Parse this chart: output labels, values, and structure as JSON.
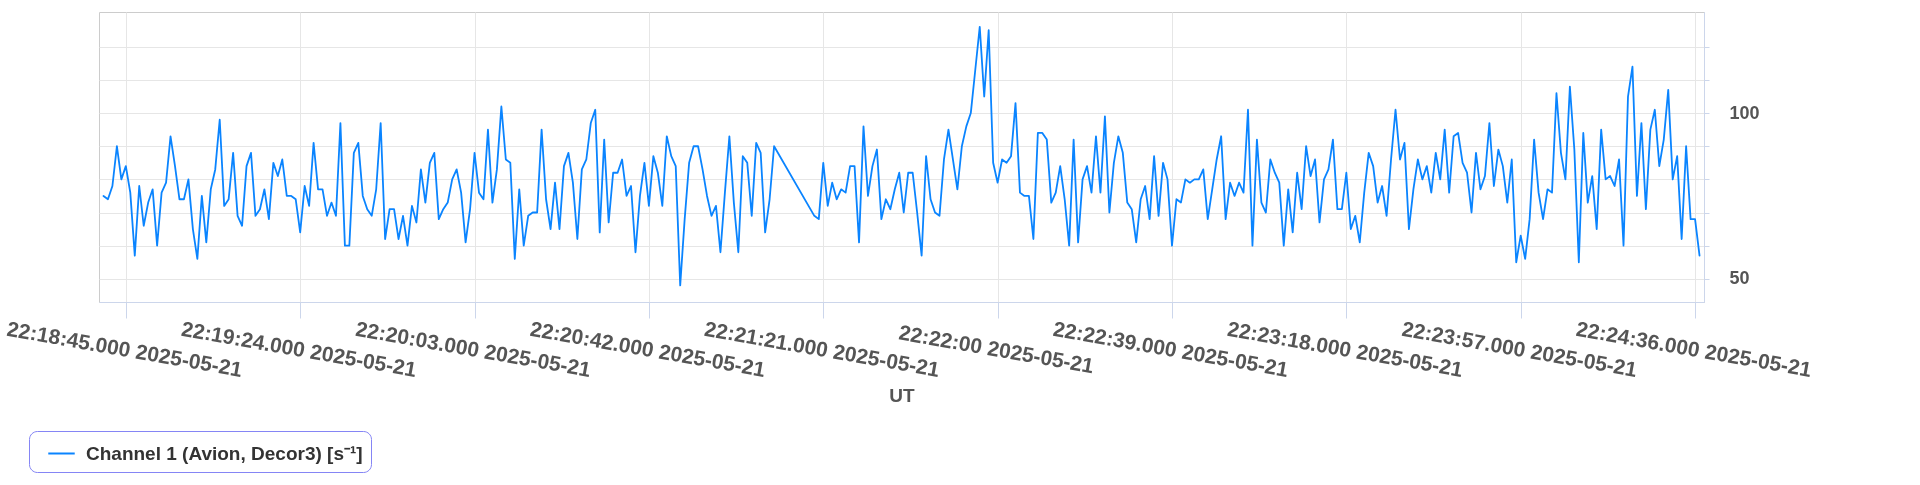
{
  "chart_data": {
    "type": "line",
    "xlabel": "UT",
    "x": [
      "2025-05-21T22:18:40",
      "2025-05-21T22:18:41",
      "2025-05-21T22:18:42",
      "2025-05-21T22:18:43",
      "2025-05-21T22:18:44",
      "2025-05-21T22:18:45",
      "2025-05-21T22:18:46",
      "2025-05-21T22:18:47",
      "2025-05-21T22:18:48",
      "2025-05-21T22:18:49",
      "2025-05-21T22:18:50",
      "2025-05-21T22:18:51",
      "2025-05-21T22:18:52",
      "2025-05-21T22:18:53",
      "2025-05-21T22:18:54",
      "2025-05-21T22:18:55",
      "2025-05-21T22:18:56",
      "2025-05-21T22:18:57",
      "2025-05-21T22:18:58",
      "2025-05-21T22:18:59",
      "2025-05-21T22:19:00",
      "2025-05-21T22:19:01",
      "2025-05-21T22:19:02",
      "2025-05-21T22:19:03",
      "2025-05-21T22:19:04",
      "2025-05-21T22:19:05",
      "2025-05-21T22:19:06",
      "2025-05-21T22:19:07",
      "2025-05-21T22:19:08",
      "2025-05-21T22:19:09",
      "2025-05-21T22:19:10",
      "2025-05-21T22:19:11",
      "2025-05-21T22:19:12",
      "2025-05-21T22:19:13",
      "2025-05-21T22:19:14",
      "2025-05-21T22:19:15",
      "2025-05-21T22:19:16",
      "2025-05-21T22:19:17",
      "2025-05-21T22:19:18",
      "2025-05-21T22:19:19",
      "2025-05-21T22:19:20",
      "2025-05-21T22:19:21",
      "2025-05-21T22:19:22",
      "2025-05-21T22:19:23",
      "2025-05-21T22:19:24",
      "2025-05-21T22:19:25",
      "2025-05-21T22:19:26",
      "2025-05-21T22:19:27",
      "2025-05-21T22:19:28",
      "2025-05-21T22:19:29",
      "2025-05-21T22:19:30",
      "2025-05-21T22:19:31",
      "2025-05-21T22:19:32",
      "2025-05-21T22:19:33",
      "2025-05-21T22:19:34",
      "2025-05-21T22:19:35",
      "2025-05-21T22:19:36",
      "2025-05-21T22:19:37",
      "2025-05-21T22:19:38",
      "2025-05-21T22:19:39",
      "2025-05-21T22:19:40",
      "2025-05-21T22:19:41",
      "2025-05-21T22:19:42",
      "2025-05-21T22:19:43",
      "2025-05-21T22:19:44",
      "2025-05-21T22:19:45",
      "2025-05-21T22:19:46",
      "2025-05-21T22:19:47",
      "2025-05-21T22:19:48",
      "2025-05-21T22:19:49",
      "2025-05-21T22:19:50",
      "2025-05-21T22:19:51",
      "2025-05-21T22:19:52",
      "2025-05-21T22:19:53",
      "2025-05-21T22:19:54",
      "2025-05-21T22:19:55",
      "2025-05-21T22:19:56",
      "2025-05-21T22:19:57",
      "2025-05-21T22:19:58",
      "2025-05-21T22:19:59",
      "2025-05-21T22:20:00",
      "2025-05-21T22:20:01",
      "2025-05-21T22:20:02",
      "2025-05-21T22:20:03",
      "2025-05-21T22:20:04",
      "2025-05-21T22:20:05",
      "2025-05-21T22:20:06",
      "2025-05-21T22:20:07",
      "2025-05-21T22:20:08",
      "2025-05-21T22:20:09",
      "2025-05-21T22:20:10",
      "2025-05-21T22:20:11",
      "2025-05-21T22:20:12",
      "2025-05-21T22:20:13",
      "2025-05-21T22:20:14",
      "2025-05-21T22:20:15",
      "2025-05-21T22:20:16",
      "2025-05-21T22:20:17",
      "2025-05-21T22:20:18",
      "2025-05-21T22:20:19",
      "2025-05-21T22:20:20",
      "2025-05-21T22:20:21",
      "2025-05-21T22:20:22",
      "2025-05-21T22:20:23",
      "2025-05-21T22:20:24",
      "2025-05-21T22:20:25",
      "2025-05-21T22:20:26",
      "2025-05-21T22:20:27",
      "2025-05-21T22:20:28",
      "2025-05-21T22:20:29",
      "2025-05-21T22:20:30",
      "2025-05-21T22:20:31",
      "2025-05-21T22:20:32",
      "2025-05-21T22:20:33",
      "2025-05-21T22:20:34",
      "2025-05-21T22:20:35",
      "2025-05-21T22:20:36",
      "2025-05-21T22:20:37",
      "2025-05-21T22:20:38",
      "2025-05-21T22:20:39",
      "2025-05-21T22:20:40",
      "2025-05-21T22:20:41",
      "2025-05-21T22:20:42",
      "2025-05-21T22:20:43",
      "2025-05-21T22:20:44",
      "2025-05-21T22:20:45",
      "2025-05-21T22:20:46",
      "2025-05-21T22:20:47",
      "2025-05-21T22:20:48",
      "2025-05-21T22:20:49",
      "2025-05-21T22:20:50",
      "2025-05-21T22:20:51",
      "2025-05-21T22:20:52",
      "2025-05-21T22:20:53",
      "2025-05-21T22:20:54",
      "2025-05-21T22:20:55",
      "2025-05-21T22:20:56",
      "2025-05-21T22:20:57",
      "2025-05-21T22:20:58",
      "2025-05-21T22:20:59",
      "2025-05-21T22:21:00",
      "2025-05-21T22:21:01",
      "2025-05-21T22:21:02",
      "2025-05-21T22:21:03",
      "2025-05-21T22:21:04",
      "2025-05-21T22:21:05",
      "2025-05-21T22:21:06",
      "2025-05-21T22:21:07",
      "2025-05-21T22:21:08",
      "2025-05-21T22:21:09",
      "2025-05-21T22:21:10",
      "2025-05-21T22:21:19",
      "2025-05-21T22:21:20",
      "2025-05-21T22:21:21",
      "2025-05-21T22:21:22",
      "2025-05-21T22:21:23",
      "2025-05-21T22:21:24",
      "2025-05-21T22:21:25",
      "2025-05-21T22:21:26",
      "2025-05-21T22:21:27",
      "2025-05-21T22:21:28",
      "2025-05-21T22:21:29",
      "2025-05-21T22:21:30",
      "2025-05-21T22:21:31",
      "2025-05-21T22:21:32",
      "2025-05-21T22:21:33",
      "2025-05-21T22:21:34",
      "2025-05-21T22:21:35",
      "2025-05-21T22:21:36",
      "2025-05-21T22:21:37",
      "2025-05-21T22:21:38",
      "2025-05-21T22:21:39",
      "2025-05-21T22:21:40",
      "2025-05-21T22:21:41",
      "2025-05-21T22:21:42",
      "2025-05-21T22:21:43",
      "2025-05-21T22:21:44",
      "2025-05-21T22:21:45",
      "2025-05-21T22:21:46",
      "2025-05-21T22:21:47",
      "2025-05-21T22:21:48",
      "2025-05-21T22:21:49",
      "2025-05-21T22:21:50",
      "2025-05-21T22:21:51",
      "2025-05-21T22:21:52",
      "2025-05-21T22:21:53",
      "2025-05-21T22:21:54",
      "2025-05-21T22:21:55",
      "2025-05-21T22:21:56",
      "2025-05-21T22:21:57",
      "2025-05-21T22:21:58",
      "2025-05-21T22:21:59",
      "2025-05-21T22:22:00",
      "2025-05-21T22:22:01",
      "2025-05-21T22:22:02",
      "2025-05-21T22:22:03",
      "2025-05-21T22:22:04",
      "2025-05-21T22:22:05",
      "2025-05-21T22:22:06",
      "2025-05-21T22:22:07",
      "2025-05-21T22:22:08",
      "2025-05-21T22:22:09",
      "2025-05-21T22:22:10",
      "2025-05-21T22:22:11",
      "2025-05-21T22:22:12",
      "2025-05-21T22:22:13",
      "2025-05-21T22:22:14",
      "2025-05-21T22:22:15",
      "2025-05-21T22:22:16",
      "2025-05-21T22:22:17",
      "2025-05-21T22:22:18",
      "2025-05-21T22:22:19",
      "2025-05-21T22:22:20",
      "2025-05-21T22:22:21",
      "2025-05-21T22:22:22",
      "2025-05-21T22:22:23",
      "2025-05-21T22:22:24",
      "2025-05-21T22:22:25",
      "2025-05-21T22:22:26",
      "2025-05-21T22:22:27",
      "2025-05-21T22:22:28",
      "2025-05-21T22:22:29",
      "2025-05-21T22:22:30",
      "2025-05-21T22:22:31",
      "2025-05-21T22:22:32",
      "2025-05-21T22:22:33",
      "2025-05-21T22:22:34",
      "2025-05-21T22:22:35",
      "2025-05-21T22:22:36",
      "2025-05-21T22:22:37",
      "2025-05-21T22:22:38",
      "2025-05-21T22:22:39",
      "2025-05-21T22:22:40",
      "2025-05-21T22:22:41",
      "2025-05-21T22:22:42",
      "2025-05-21T22:22:43",
      "2025-05-21T22:22:44",
      "2025-05-21T22:22:45",
      "2025-05-21T22:22:46",
      "2025-05-21T22:22:47",
      "2025-05-21T22:22:48",
      "2025-05-21T22:22:49",
      "2025-05-21T22:22:50",
      "2025-05-21T22:22:51",
      "2025-05-21T22:22:52",
      "2025-05-21T22:22:53",
      "2025-05-21T22:22:54",
      "2025-05-21T22:22:55",
      "2025-05-21T22:22:56",
      "2025-05-21T22:22:57",
      "2025-05-21T22:22:58",
      "2025-05-21T22:22:59",
      "2025-05-21T22:23:00",
      "2025-05-21T22:23:01",
      "2025-05-21T22:23:02",
      "2025-05-21T22:23:03",
      "2025-05-21T22:23:04",
      "2025-05-21T22:23:05",
      "2025-05-21T22:23:06",
      "2025-05-21T22:23:07",
      "2025-05-21T22:23:08",
      "2025-05-21T22:23:09",
      "2025-05-21T22:23:10",
      "2025-05-21T22:23:11",
      "2025-05-21T22:23:12",
      "2025-05-21T22:23:13",
      "2025-05-21T22:23:14",
      "2025-05-21T22:23:15",
      "2025-05-21T22:23:16",
      "2025-05-21T22:23:17",
      "2025-05-21T22:23:18",
      "2025-05-21T22:23:19",
      "2025-05-21T22:23:20",
      "2025-05-21T22:23:21",
      "2025-05-21T22:23:22",
      "2025-05-21T22:23:23",
      "2025-05-21T22:23:24",
      "2025-05-21T22:23:25",
      "2025-05-21T22:23:26",
      "2025-05-21T22:23:27",
      "2025-05-21T22:23:28",
      "2025-05-21T22:23:29",
      "2025-05-21T22:23:30",
      "2025-05-21T22:23:31",
      "2025-05-21T22:23:32",
      "2025-05-21T22:23:33",
      "2025-05-21T22:23:34",
      "2025-05-21T22:23:35",
      "2025-05-21T22:23:36",
      "2025-05-21T22:23:37",
      "2025-05-21T22:23:38",
      "2025-05-21T22:23:39",
      "2025-05-21T22:23:40",
      "2025-05-21T22:23:41",
      "2025-05-21T22:23:42",
      "2025-05-21T22:23:43",
      "2025-05-21T22:23:44",
      "2025-05-21T22:23:45",
      "2025-05-21T22:23:46",
      "2025-05-21T22:23:47",
      "2025-05-21T22:23:48",
      "2025-05-21T22:23:49",
      "2025-05-21T22:23:50",
      "2025-05-21T22:23:51",
      "2025-05-21T22:23:52",
      "2025-05-21T22:23:53",
      "2025-05-21T22:23:54",
      "2025-05-21T22:23:55",
      "2025-05-21T22:23:56",
      "2025-05-21T22:23:57",
      "2025-05-21T22:23:58",
      "2025-05-21T22:23:59",
      "2025-05-21T22:24:00",
      "2025-05-21T22:24:01",
      "2025-05-21T22:24:02",
      "2025-05-21T22:24:03",
      "2025-05-21T22:24:04",
      "2025-05-21T22:24:05",
      "2025-05-21T22:24:06",
      "2025-05-21T22:24:07",
      "2025-05-21T22:24:08",
      "2025-05-21T22:24:09",
      "2025-05-21T22:24:10",
      "2025-05-21T22:24:11",
      "2025-05-21T22:24:12",
      "2025-05-21T22:24:13",
      "2025-05-21T22:24:14",
      "2025-05-21T22:24:15",
      "2025-05-21T22:24:16",
      "2025-05-21T22:24:17",
      "2025-05-21T22:24:18",
      "2025-05-21T22:24:19",
      "2025-05-21T22:24:20",
      "2025-05-21T22:24:21",
      "2025-05-21T22:24:22",
      "2025-05-21T22:24:23",
      "2025-05-21T22:24:24",
      "2025-05-21T22:24:25",
      "2025-05-21T22:24:26",
      "2025-05-21T22:24:27",
      "2025-05-21T22:24:28",
      "2025-05-21T22:24:29",
      "2025-05-21T22:24:30",
      "2025-05-21T22:24:31",
      "2025-05-21T22:24:32",
      "2025-05-21T22:24:33",
      "2025-05-21T22:24:34",
      "2025-05-21T22:24:35",
      "2025-05-21T22:24:36",
      "2025-05-21T22:24:37"
    ],
    "series": [
      {
        "name": "Channel 1 (Avion, Decor3) [s⁻¹]",
        "color": "#0a84ff",
        "values": [
          75,
          74,
          78,
          90,
          80,
          84,
          76,
          57,
          78,
          66,
          73,
          77,
          60,
          76,
          79,
          93,
          84,
          74,
          74,
          80,
          65,
          56,
          75,
          61,
          77,
          83,
          98,
          72,
          74,
          88,
          69,
          66,
          84,
          88,
          69,
          71,
          77,
          68,
          85,
          81,
          86,
          75,
          75,
          74,
          64,
          78,
          72,
          91,
          77,
          77,
          69,
          73,
          69,
          97,
          60,
          60,
          88,
          91,
          75,
          71,
          69,
          77,
          97,
          62,
          71,
          71,
          62,
          69,
          60,
          72,
          67,
          83,
          73,
          85,
          88,
          68,
          71,
          73,
          80,
          83,
          76,
          61,
          71,
          88,
          76,
          74,
          95,
          73,
          83,
          102,
          86,
          85,
          56,
          77,
          60,
          69,
          70,
          70,
          95,
          74,
          65,
          79,
          65,
          84,
          88,
          79,
          62,
          83,
          86,
          97,
          101,
          64,
          92,
          67,
          82,
          82,
          86,
          75,
          78,
          58,
          75,
          85,
          72,
          87,
          82,
          72,
          93,
          87,
          84,
          48,
          68,
          85,
          90,
          90,
          83,
          75,
          69,
          72,
          58,
          76,
          93,
          73,
          58,
          87,
          85,
          69,
          91,
          88,
          64,
          74,
          90,
          69,
          68,
          85,
          72,
          79,
          74,
          77,
          76,
          84,
          84,
          61,
          96,
          75,
          84,
          89,
          68,
          74,
          71,
          77,
          82,
          70,
          82,
          82,
          70,
          57,
          87,
          74,
          70,
          69,
          86,
          95,
          86,
          77,
          90,
          96,
          100,
          113,
          126,
          105,
          125,
          85,
          79,
          86,
          85,
          87,
          103,
          76,
          75,
          75,
          62,
          94,
          94,
          92,
          73,
          76,
          84,
          74,
          60,
          92,
          61,
          80,
          84,
          76,
          93,
          76,
          99,
          70,
          85,
          93,
          88,
          73,
          71,
          61,
          74,
          78,
          68,
          87,
          69,
          85,
          80,
          60,
          74,
          73,
          80,
          79,
          80,
          80,
          83,
          68,
          77,
          86,
          93,
          68,
          79,
          75,
          79,
          76,
          101,
          60,
          92,
          73,
          70,
          86,
          82,
          79,
          60,
          77,
          64,
          82,
          71,
          90,
          81,
          86,
          67,
          80,
          83,
          92,
          71,
          71,
          82,
          65,
          69,
          61,
          76,
          88,
          84,
          73,
          78,
          69,
          86,
          101,
          86,
          91,
          65,
          77,
          86,
          80,
          84,
          76,
          88,
          80,
          95,
          76,
          93,
          94,
          85,
          82,
          70,
          88,
          77,
          81,
          97,
          78,
          89,
          84,
          73,
          86,
          55,
          63,
          56,
          68,
          92,
          76,
          68,
          77,
          76,
          106,
          88,
          80,
          108,
          89,
          55,
          94,
          73,
          81,
          65,
          95,
          80,
          81,
          78,
          86,
          60,
          105,
          114,
          75,
          97,
          71,
          95,
          101,
          84,
          92,
          107,
          80,
          87,
          62,
          90,
          68,
          68,
          57
        ]
      }
    ],
    "xlim": [
      "2025-05-21T22:18:39",
      "2025-05-21T22:24:38"
    ],
    "xticks": [
      {
        "value": "2025-05-21T22:18:45",
        "label": "22:18:45.000 2025-05-21"
      },
      {
        "value": "2025-05-21T22:19:24",
        "label": "22:19:24.000 2025-05-21"
      },
      {
        "value": "2025-05-21T22:20:03",
        "label": "22:20:03.000 2025-05-21"
      },
      {
        "value": "2025-05-21T22:20:42",
        "label": "22:20:42.000 2025-05-21"
      },
      {
        "value": "2025-05-21T22:21:21",
        "label": "22:21:21.000 2025-05-21"
      },
      {
        "value": "2025-05-21T22:22:00",
        "label": "22:22:00 2025-05-21"
      },
      {
        "value": "2025-05-21T22:22:39",
        "label": "22:22:39.000 2025-05-21"
      },
      {
        "value": "2025-05-21T22:23:18",
        "label": "22:23:18.000 2025-05-21"
      },
      {
        "value": "2025-05-21T22:23:57",
        "label": "22:23:57.000 2025-05-21"
      },
      {
        "value": "2025-05-21T22:24:36",
        "label": "22:24:36.000 2025-05-21"
      }
    ],
    "ylim": [
      43,
      130.5
    ],
    "yticks": [
      50,
      {
        "value": 60,
        "label": null
      },
      {
        "value": 70,
        "label": null
      },
      {
        "value": 80,
        "label": null
      },
      {
        "value": 90,
        "label": null
      },
      100,
      {
        "value": 110,
        "label": null
      },
      {
        "value": 120,
        "label": null
      }
    ],
    "grid": true,
    "legend": "bottom left",
    "line_style": "solid"
  }
}
